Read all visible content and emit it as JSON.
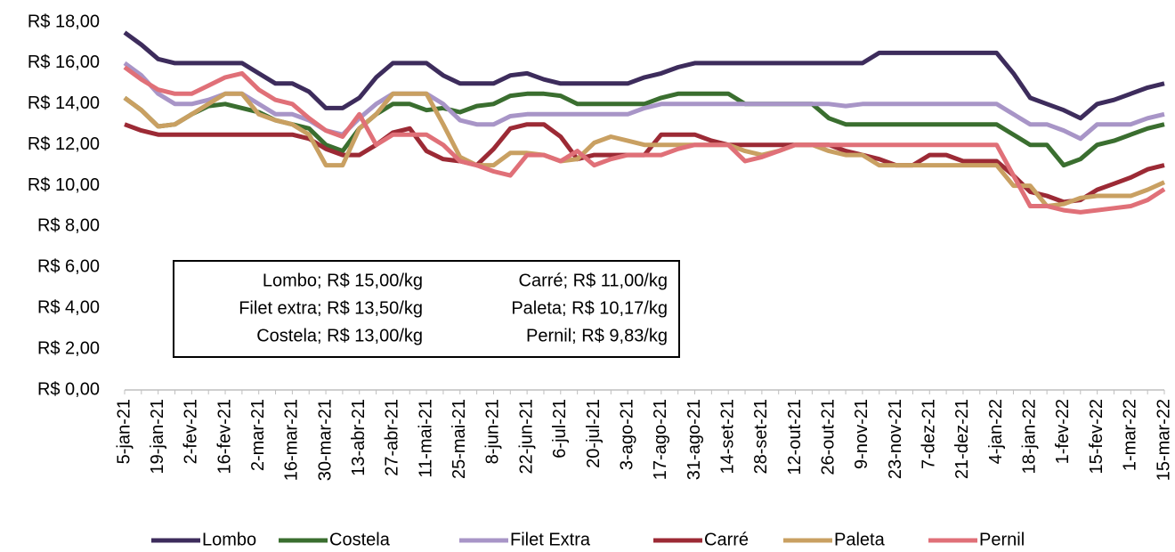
{
  "chart_data": {
    "type": "line",
    "categories": [
      "5-jan-21",
      null,
      "19-jan-21",
      null,
      "2-fev-21",
      null,
      "16-fev-21",
      null,
      "2-mar-21",
      null,
      "16-mar-21",
      null,
      "30-mar-21",
      null,
      "13-abr-21",
      null,
      "27-abr-21",
      null,
      "11-mai-21",
      null,
      "25-mai-21",
      null,
      "8-jun-21",
      null,
      "22-jun-21",
      null,
      "6-jul-21",
      null,
      "20-jul-21",
      null,
      "3-ago-21",
      null,
      "17-ago-21",
      null,
      "31-ago-21",
      null,
      "14-set-21",
      null,
      "28-set-21",
      null,
      "12-out-21",
      null,
      "26-out-21",
      null,
      "9-nov-21",
      null,
      "23-nov-21",
      null,
      "7-dez-21",
      null,
      "21-dez-21",
      null,
      "4-jan-22",
      null,
      "18-jan-22",
      null,
      "1-fev-22",
      null,
      "15-fev-22",
      null,
      "1-mar-22",
      null,
      "15-mar-22"
    ],
    "series": [
      {
        "name": "Lombo",
        "color": "#3d2c5c",
        "values": [
          17.5,
          16.9,
          16.2,
          16.0,
          16.0,
          16.0,
          16.0,
          16.0,
          15.5,
          15.0,
          15.0,
          14.6,
          13.8,
          13.8,
          14.3,
          15.3,
          16.0,
          16.0,
          16.0,
          15.4,
          15.0,
          15.0,
          15.0,
          15.4,
          15.5,
          15.2,
          15.0,
          15.0,
          15.0,
          15.0,
          15.0,
          15.3,
          15.5,
          15.8,
          16.0,
          16.0,
          16.0,
          16.0,
          16.0,
          16.0,
          16.0,
          16.0,
          16.0,
          16.0,
          16.0,
          16.5,
          16.5,
          16.5,
          16.5,
          16.5,
          16.5,
          16.5,
          16.5,
          15.5,
          14.3,
          14.0,
          13.7,
          13.3,
          14.0,
          14.2,
          14.5,
          14.8,
          15.0
        ]
      },
      {
        "name": "Costela",
        "color": "#3a6e2f",
        "values": [
          14.3,
          13.7,
          12.9,
          13.0,
          13.5,
          13.9,
          14.0,
          13.8,
          13.6,
          13.2,
          13.0,
          12.8,
          12.0,
          11.7,
          12.8,
          13.5,
          14.0,
          14.0,
          13.7,
          13.8,
          13.6,
          13.9,
          14.0,
          14.4,
          14.5,
          14.5,
          14.4,
          14.0,
          14.0,
          14.0,
          14.0,
          14.0,
          14.3,
          14.5,
          14.5,
          14.5,
          14.5,
          14.0,
          14.0,
          14.0,
          14.0,
          14.0,
          13.3,
          13.0,
          13.0,
          13.0,
          13.0,
          13.0,
          13.0,
          13.0,
          13.0,
          13.0,
          13.0,
          12.5,
          12.0,
          12.0,
          11.0,
          11.3,
          12.0,
          12.2,
          12.5,
          12.8,
          13.0
        ]
      },
      {
        "name": "Filet Extra",
        "color": "#a895c7",
        "values": [
          16.0,
          15.4,
          14.5,
          14.0,
          14.0,
          14.2,
          14.5,
          14.5,
          14.0,
          13.5,
          13.5,
          13.2,
          12.7,
          12.5,
          13.3,
          14.0,
          14.5,
          14.5,
          14.5,
          14.0,
          13.2,
          13.0,
          13.0,
          13.4,
          13.5,
          13.5,
          13.5,
          13.5,
          13.5,
          13.5,
          13.5,
          13.8,
          14.0,
          14.0,
          14.0,
          14.0,
          14.0,
          14.0,
          14.0,
          14.0,
          14.0,
          14.0,
          14.0,
          13.9,
          14.0,
          14.0,
          14.0,
          14.0,
          14.0,
          14.0,
          14.0,
          14.0,
          14.0,
          13.5,
          13.0,
          13.0,
          12.7,
          12.3,
          13.0,
          13.0,
          13.0,
          13.3,
          13.5
        ]
      },
      {
        "name": "Carré",
        "color": "#9c2a35",
        "values": [
          13.0,
          12.7,
          12.5,
          12.5,
          12.5,
          12.5,
          12.5,
          12.5,
          12.5,
          12.5,
          12.5,
          12.3,
          11.8,
          11.5,
          11.5,
          12.0,
          12.6,
          12.8,
          11.7,
          11.3,
          11.2,
          11.0,
          11.8,
          12.8,
          13.0,
          13.0,
          12.4,
          11.3,
          11.5,
          11.5,
          11.5,
          11.5,
          12.5,
          12.5,
          12.5,
          12.2,
          12.0,
          12.0,
          12.0,
          12.0,
          12.0,
          12.0,
          12.0,
          11.7,
          11.5,
          11.3,
          11.0,
          11.0,
          11.5,
          11.5,
          11.2,
          11.2,
          11.2,
          10.5,
          9.7,
          9.5,
          9.2,
          9.3,
          9.8,
          10.1,
          10.4,
          10.8,
          11.0
        ]
      },
      {
        "name": "Paleta",
        "color": "#c9a062",
        "values": [
          14.3,
          13.7,
          12.9,
          13.0,
          13.5,
          14.0,
          14.5,
          14.5,
          13.5,
          13.2,
          13.0,
          12.5,
          11.0,
          11.0,
          12.8,
          13.5,
          14.5,
          14.5,
          14.5,
          13.0,
          11.4,
          11.0,
          11.0,
          11.6,
          11.6,
          11.5,
          11.2,
          11.3,
          12.1,
          12.4,
          12.2,
          12.0,
          12.0,
          12.0,
          12.0,
          12.0,
          12.0,
          11.7,
          11.5,
          11.7,
          12.0,
          12.0,
          11.7,
          11.5,
          11.5,
          11.0,
          11.0,
          11.0,
          11.0,
          11.0,
          11.0,
          11.0,
          11.0,
          10.0,
          10.0,
          9.0,
          9.1,
          9.4,
          9.5,
          9.5,
          9.5,
          9.8,
          10.17
        ]
      },
      {
        "name": "Pernil",
        "color": "#e07078",
        "values": [
          15.8,
          15.2,
          14.7,
          14.5,
          14.5,
          14.9,
          15.3,
          15.5,
          14.7,
          14.2,
          14.0,
          13.3,
          12.7,
          12.4,
          13.5,
          12.0,
          12.5,
          12.5,
          12.5,
          12.0,
          11.2,
          11.0,
          10.7,
          10.5,
          11.5,
          11.5,
          11.2,
          11.7,
          11.0,
          11.3,
          11.5,
          11.5,
          11.5,
          11.8,
          12.0,
          12.0,
          12.0,
          11.2,
          11.4,
          11.7,
          12.0,
          12.0,
          12.0,
          12.0,
          12.0,
          12.0,
          12.0,
          12.0,
          12.0,
          12.0,
          12.0,
          12.0,
          12.0,
          10.5,
          9.0,
          9.0,
          8.8,
          8.7,
          8.8,
          8.9,
          9.0,
          9.3,
          9.83
        ]
      }
    ],
    "ylim": [
      0,
      18
    ],
    "yticks": [
      {
        "value": 0,
        "label": "R$ 0,00"
      },
      {
        "value": 2,
        "label": "R$ 2,00"
      },
      {
        "value": 4,
        "label": "R$ 4,00"
      },
      {
        "value": 6,
        "label": "R$ 6,00"
      },
      {
        "value": 8,
        "label": "R$ 8,00"
      },
      {
        "value": 10,
        "label": "R$ 10,00"
      },
      {
        "value": 12,
        "label": "R$ 12,00"
      },
      {
        "value": 14,
        "label": "R$ 14,00"
      },
      {
        "value": 16,
        "label": "R$ 16,00"
      },
      {
        "value": 18,
        "label": "R$ 18,00"
      }
    ],
    "grid": false,
    "legend": "bottom",
    "annotations": [
      "Lombo; R$ 15,00/kg",
      "Filet extra; R$ 13,50/kg",
      "Costela; R$ 13,00/kg",
      "Carré; R$ 11,00/kg",
      "Paleta; R$ 10,17/kg",
      "Pernil; R$ 9,83/kg"
    ]
  }
}
